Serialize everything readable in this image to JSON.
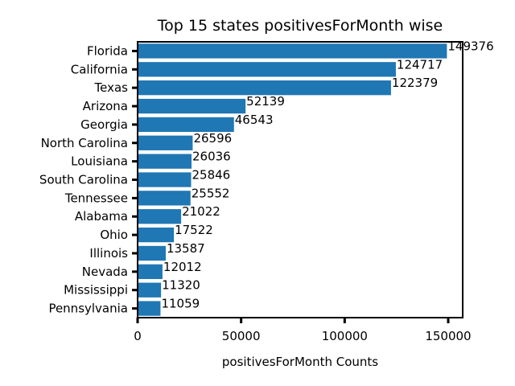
{
  "chart_data": {
    "type": "bar",
    "orientation": "horizontal",
    "title": "Top 15 states positivesForMonth wise",
    "xlabel": "positivesForMonth Counts",
    "ylabel": "",
    "xlim": [
      0,
      157000
    ],
    "xticks": [
      0,
      50000,
      100000,
      150000
    ],
    "xtick_labels": [
      "0",
      "50000",
      "100000",
      "150000"
    ],
    "grid": false,
    "bar_color": "#1f77b4",
    "categories": [
      "Florida",
      "California",
      "Texas",
      "Arizona",
      "Georgia",
      "North Carolina",
      "Louisiana",
      "South Carolina",
      "Tennessee",
      "Alabama",
      "Ohio",
      "Illinois",
      "Nevada",
      "Mississippi",
      "Pennsylvania"
    ],
    "values": [
      149376,
      124717,
      122379,
      52139,
      46543,
      26596,
      26036,
      25846,
      25552,
      21022,
      17522,
      13587,
      12012,
      11320,
      11059
    ],
    "data_labels": [
      "149376",
      "124717",
      "122379",
      "52139",
      "46543",
      "26596",
      "26036",
      "25846",
      "25552",
      "21022",
      "17522",
      "13587",
      "12012",
      "11320",
      "11059"
    ]
  }
}
